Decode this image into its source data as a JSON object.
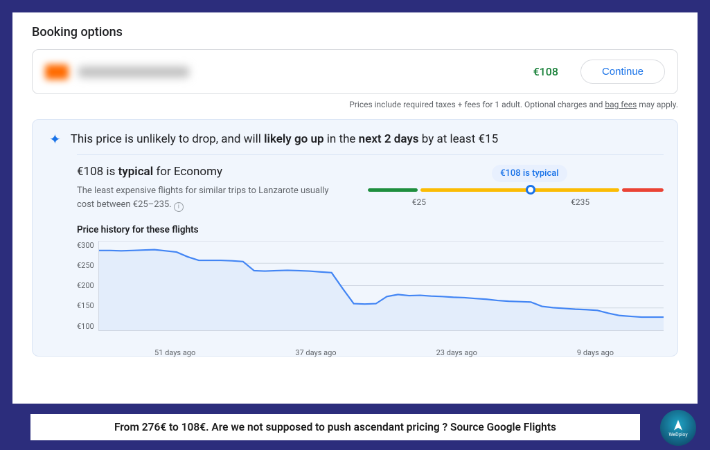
{
  "title": "Booking options",
  "booking": {
    "price": "€108",
    "continue_label": "Continue"
  },
  "disclaimer": {
    "prefix": "Prices include required taxes + fees for 1 adult. Optional charges and ",
    "bag_link": "bag fees",
    "suffix": " may apply."
  },
  "insight": {
    "headline_plain1": "This price is unlikely to drop, and will ",
    "headline_bold1": "likely go up",
    "headline_plain2": " in the ",
    "headline_bold2": "next 2 days",
    "headline_plain3": " by at least €15",
    "typical_title_prefix": "€108 is ",
    "typical_title_bold": "typical",
    "typical_title_suffix": " for Economy",
    "typical_desc": "The least expensive flights for similar trips to Lanzarote usually cost between €25–235.",
    "gauge": {
      "pill": "€108 is typical",
      "low_label": "€25",
      "high_label": "€235",
      "segments": [
        {
          "flex": 12,
          "color": "#1e8e3e"
        },
        {
          "flex": 48,
          "color": "#fbbc04"
        },
        {
          "flex": 10,
          "color": "#ea4335"
        }
      ],
      "knob_pct": 53.5
    },
    "history_title": "Price history for these flights",
    "chart": {
      "y_ticks": [
        "€300",
        "€250",
        "€200",
        "€150",
        "€100"
      ],
      "y_min": 75,
      "y_max": 300,
      "x_labels": [
        "51 days ago",
        "37 days ago",
        "23 days ago",
        "9 days ago"
      ],
      "line_color": "#4285f4",
      "fill_color": "#e3edfb",
      "grid_color": "#d0d7e2",
      "points": [
        276,
        276,
        275,
        276,
        277,
        278,
        275,
        272,
        260,
        251,
        251,
        251,
        250,
        248,
        225,
        224,
        225,
        226,
        225,
        224,
        222,
        220,
        180,
        142,
        141,
        142,
        160,
        165,
        162,
        163,
        161,
        160,
        158,
        157,
        155,
        153,
        150,
        148,
        147,
        146,
        135,
        132,
        130,
        128,
        127,
        125,
        118,
        112,
        110,
        108,
        108,
        108
      ]
    }
  },
  "caption": "From 276€ to 108€. Are we not supposed to push ascendant pricing ? Source Google Flights",
  "brand": "WeDploy",
  "colors": {
    "frame": "#2c2d7c",
    "price": "#188038",
    "accent": "#1a73e8"
  }
}
